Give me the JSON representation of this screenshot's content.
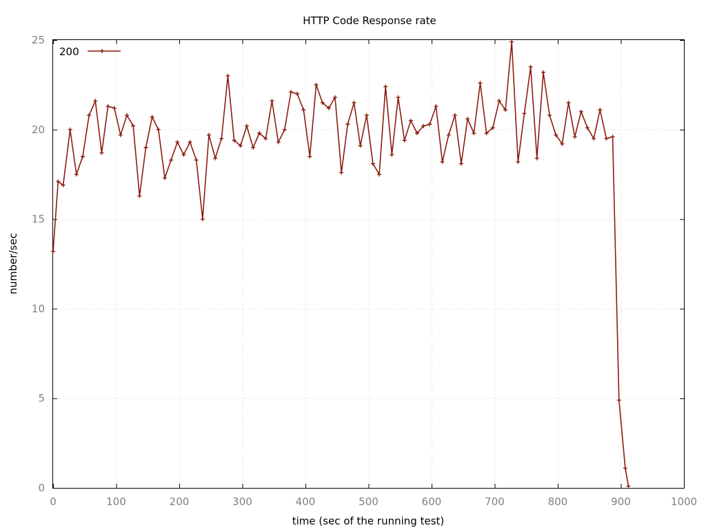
{
  "chart_data": {
    "type": "line",
    "title": "HTTP Code Response rate",
    "xlabel": "time (sec of the running test)",
    "ylabel": "number/sec",
    "xlim": [
      0,
      1000
    ],
    "ylim": [
      0,
      25
    ],
    "xticks": [
      0,
      100,
      200,
      300,
      400,
      500,
      600,
      700,
      800,
      900,
      1000
    ],
    "yticks": [
      0,
      5,
      10,
      15,
      20,
      25
    ],
    "grid": true,
    "legend_position": "top-left",
    "series": [
      {
        "name": "200",
        "color": "#8b1a0e",
        "marker": "plus",
        "x": [
          0,
          8,
          16,
          27,
          37,
          47,
          57,
          67,
          77,
          87,
          97,
          107,
          117,
          127,
          137,
          147,
          157,
          167,
          177,
          187,
          197,
          207,
          217,
          227,
          237,
          247,
          257,
          267,
          277,
          287,
          297,
          307,
          317,
          327,
          337,
          347,
          357,
          367,
          377,
          387,
          397,
          407,
          417,
          427,
          437,
          447,
          457,
          467,
          477,
          487,
          497,
          507,
          517,
          527,
          537,
          547,
          557,
          567,
          577,
          587,
          597,
          607,
          617,
          627,
          637,
          647,
          657,
          667,
          677,
          687,
          697,
          707,
          717,
          727,
          737,
          747,
          757,
          767,
          777,
          787,
          797,
          807,
          817,
          827,
          837,
          847,
          857,
          867,
          877,
          887,
          897,
          907,
          912
        ],
        "y": [
          13.2,
          17.1,
          16.9,
          20.0,
          17.5,
          18.5,
          20.8,
          21.6,
          18.7,
          21.3,
          21.2,
          19.7,
          20.8,
          20.2,
          16.3,
          19.0,
          20.7,
          20.0,
          17.3,
          18.3,
          19.3,
          18.6,
          19.3,
          18.3,
          15.0,
          19.7,
          18.4,
          19.5,
          23.0,
          19.4,
          19.1,
          20.2,
          19.0,
          19.8,
          19.5,
          21.6,
          19.3,
          20.0,
          22.1,
          22.0,
          21.1,
          18.5,
          22.5,
          21.5,
          21.2,
          21.8,
          17.6,
          20.3,
          21.5,
          19.1,
          20.8,
          18.1,
          17.5,
          22.4,
          18.6,
          21.8,
          19.4,
          20.5,
          19.8,
          20.2,
          20.3,
          21.3,
          18.2,
          19.7,
          20.8,
          18.1,
          20.6,
          19.8,
          22.6,
          19.8,
          20.1,
          21.6,
          21.1,
          24.9,
          18.2,
          20.9,
          23.5,
          18.4,
          23.2,
          20.8,
          19.7,
          19.2,
          21.5,
          19.6,
          21.0,
          20.1,
          19.5,
          21.1,
          19.5,
          19.6,
          4.9,
          1.1,
          0.1
        ]
      }
    ]
  }
}
